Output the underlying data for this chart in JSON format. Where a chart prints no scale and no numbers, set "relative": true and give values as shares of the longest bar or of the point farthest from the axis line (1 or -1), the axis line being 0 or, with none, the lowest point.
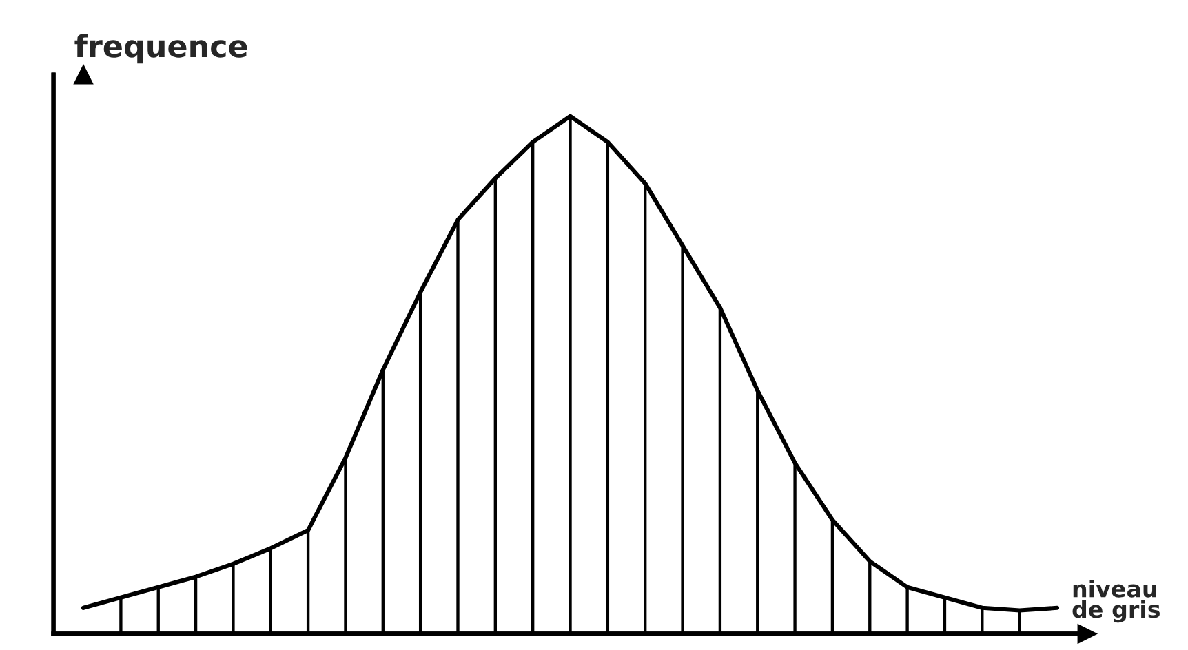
{
  "chart_data": [
    {
      "type": "bar",
      "relative": true,
      "ylabel": "frequence",
      "categories": [
        null,
        null,
        null,
        null,
        null,
        null,
        null,
        null,
        null,
        null,
        null,
        null,
        null,
        null,
        null,
        null,
        null,
        null,
        null,
        null,
        null,
        null,
        null,
        null,
        null
      ],
      "series": [
        {
          "color": "#000000",
          "values": [
            0.07,
            0.09,
            0.11,
            0.135,
            0.165,
            0.2,
            0.34,
            0.51,
            0.66,
            0.8,
            0.88,
            0.95,
            1.0,
            0.95,
            0.87,
            0.75,
            0.63,
            0.47,
            0.33,
            0.22,
            0.14,
            0.09,
            0.07,
            0.05,
            0.045
          ]
        }
      ]
    },
    {
      "type": "line",
      "relative": true,
      "xlabel": "niveau\nde gris",
      "categories": [
        null,
        null,
        null,
        null,
        null,
        null,
        null,
        null,
        null,
        null,
        null,
        null,
        null,
        null,
        null,
        null,
        null,
        null,
        null,
        null,
        null,
        null,
        null,
        null,
        null,
        null,
        null
      ],
      "series": [
        {
          "color": "#000000",
          "values": [
            0.05,
            0.07,
            0.09,
            0.11,
            0.135,
            0.165,
            0.2,
            0.34,
            0.51,
            0.66,
            0.8,
            0.88,
            0.95,
            1.0,
            0.95,
            0.87,
            0.75,
            0.63,
            0.47,
            0.33,
            0.22,
            0.14,
            0.09,
            0.07,
            0.05,
            0.045,
            0.05
          ]
        }
      ]
    }
  ]
}
